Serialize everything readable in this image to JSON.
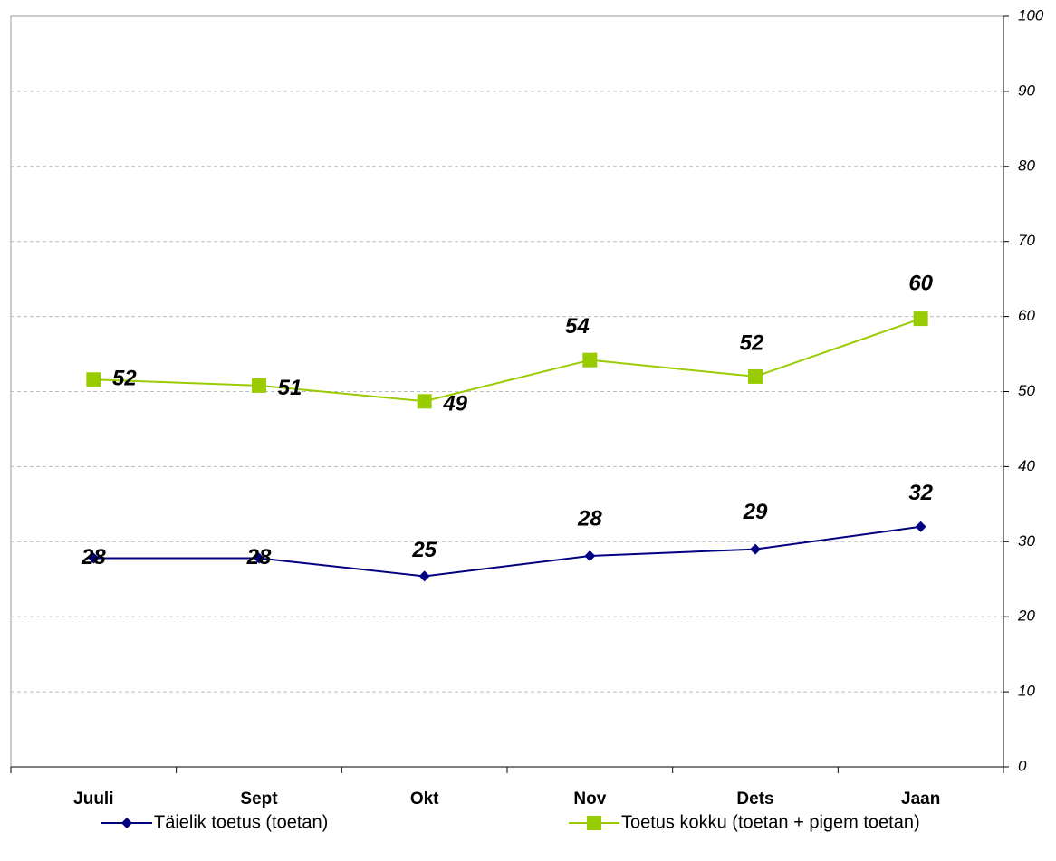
{
  "chart_data": {
    "type": "line",
    "categories": [
      "Juuli",
      "Sept",
      "Okt",
      "Nov",
      "Dets",
      "Jaan"
    ],
    "series": [
      {
        "name": "Täielik toetus (toetan)",
        "color": "#000080",
        "values": [
          27.8,
          27.8,
          25.4,
          28.1,
          29,
          32
        ],
        "value_labels": [
          "28",
          "28",
          "25",
          "28",
          "29",
          "32"
        ]
      },
      {
        "name": "Toetus kokku (toetan + pigem toetan)",
        "color": "#99cc00",
        "values": [
          51.6,
          50.8,
          48.7,
          54.2,
          52,
          59.7
        ],
        "value_labels": [
          "52",
          "51",
          "49",
          "54",
          "52",
          "60"
        ]
      }
    ],
    "ylim": [
      0,
      100
    ],
    "yticks": [
      0,
      10,
      20,
      30,
      40,
      50,
      60,
      70,
      80,
      90,
      100
    ],
    "grid": true,
    "legend": "bottom"
  }
}
